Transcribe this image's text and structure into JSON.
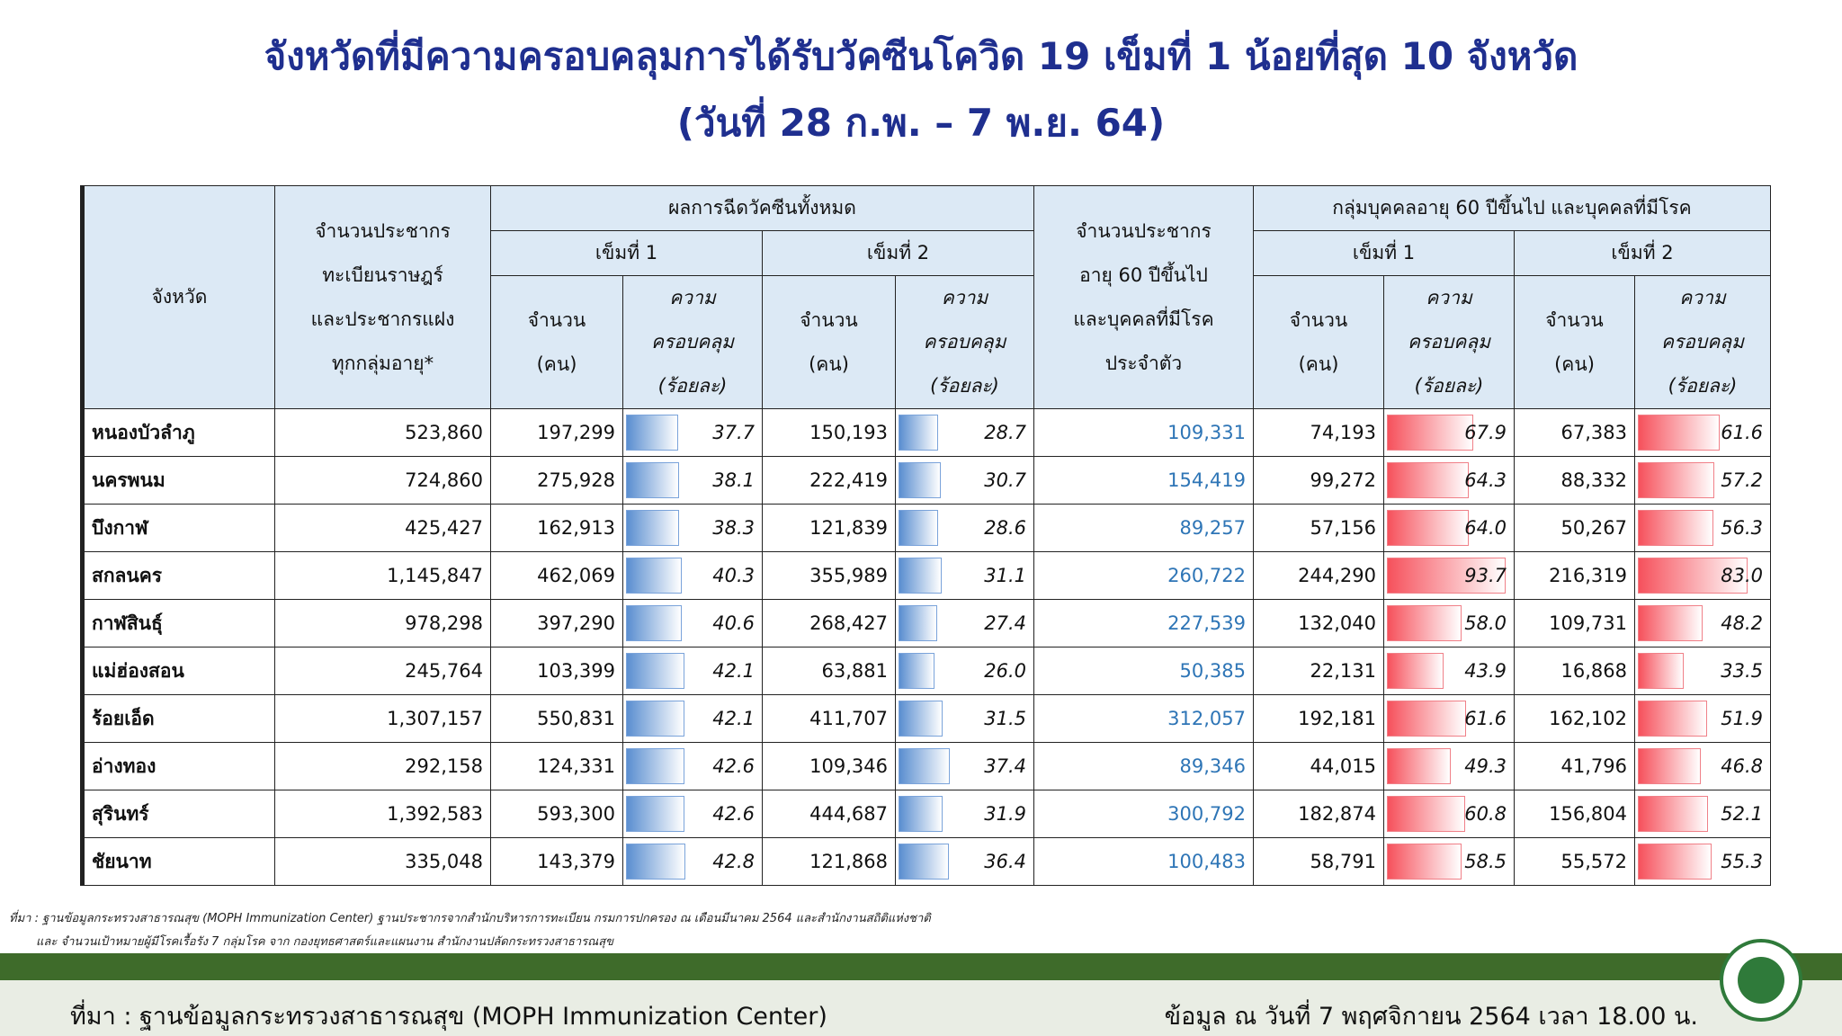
{
  "header": {
    "title": "จังหวัดที่มีความครอบคลุมการได้รับวัคซีนโควิด 19 เข็มที่ 1 น้อยที่สุด 10 จังหวัด",
    "subtitle": "(วันที่ 28 ก.พ. – 7 พ.ย. 64)"
  },
  "table": {
    "head": {
      "province": "จังหวัด",
      "population": [
        "จำนวนประชากร",
        "ทะเบียนราษฎร์",
        "และประชากรแฝง",
        "ทุกกลุ่มอายุ*"
      ],
      "all_group": "ผลการฉีดวัคซีนทั้งหมด",
      "elderly_pop": [
        "จำนวนประชากร",
        "อายุ 60 ปีขึ้นไป",
        "และบุคคลที่มีโรค",
        "ประจำตัว"
      ],
      "elderly_group": "กลุ่มบุคคลอายุ 60 ปีขึ้นไป และบุคคลที่มีโรค",
      "dose_labels": [
        "เข็มที่ 1",
        "เข็มที่ 2",
        "เข็มที่ 1",
        "เข็มที่ 2"
      ],
      "count": [
        "จำนวน",
        "(คน)"
      ],
      "coverage": [
        "ความ",
        "ครอบคลุม",
        "(ร้อยละ)"
      ]
    },
    "rows": [
      [
        "หนองบัวลำภู",
        "523,860",
        "197,299",
        "37.7",
        "150,193",
        "28.7",
        "109,331",
        "74,193",
        "67.9",
        "67,383",
        "61.6"
      ],
      [
        "นครพนม",
        "724,860",
        "275,928",
        "38.1",
        "222,419",
        "30.7",
        "154,419",
        "99,272",
        "64.3",
        "88,332",
        "57.2"
      ],
      [
        "บึงกาฬ",
        "425,427",
        "162,913",
        "38.3",
        "121,839",
        "28.6",
        "89,257",
        "57,156",
        "64.0",
        "50,267",
        "56.3"
      ],
      [
        "สกลนคร",
        "1,145,847",
        "462,069",
        "40.3",
        "355,989",
        "31.1",
        "260,722",
        "244,290",
        "93.7",
        "216,319",
        "83.0"
      ],
      [
        "กาฬสินธุ์",
        "978,298",
        "397,290",
        "40.6",
        "268,427",
        "27.4",
        "227,539",
        "132,040",
        "58.0",
        "109,731",
        "48.2"
      ],
      [
        "แม่ฮ่องสอน",
        "245,764",
        "103,399",
        "42.1",
        "63,881",
        "26.0",
        "50,385",
        "22,131",
        "43.9",
        "16,868",
        "33.5"
      ],
      [
        "ร้อยเอ็ด",
        "1,307,157",
        "550,831",
        "42.1",
        "411,707",
        "31.5",
        "312,057",
        "192,181",
        "61.6",
        "162,102",
        "51.9"
      ],
      [
        "อ่างทอง",
        "292,158",
        "124,331",
        "42.6",
        "109,346",
        "37.4",
        "89,346",
        "44,015",
        "49.3",
        "41,796",
        "46.8"
      ],
      [
        "สุรินทร์",
        "1,392,583",
        "593,300",
        "42.6",
        "444,687",
        "31.9",
        "300,792",
        "182,874",
        "60.8",
        "156,804",
        "52.1"
      ],
      [
        "ชัยนาท",
        "335,048",
        "143,379",
        "42.8",
        "121,868",
        "36.4",
        "100,483",
        "58,791",
        "58.5",
        "55,572",
        "55.3"
      ]
    ]
  },
  "footnote": [
    "ที่มา : ฐานข้อมูลกระทรวงสาธารณสุข (MOPH  Immunization Center) ฐานประชากรจากสำนักบริหารการทะเบียน กรมการปกครอง ณ เดือนมีนาคม 2564 และสำนักงานสถิติแห่งชาติ",
    "และ จำนวนเป้าหมายผู้มีโรคเรื้อรัง 7 กลุ่มโรค จาก กองยุทธศาสตร์และแผนงาน สำนักงานปลัดกระทรวงสาธารณสุข"
  ],
  "footer": {
    "source": "ที่มา : ฐานข้อมูลกระทรวงสาธารณสุข (MOPH  Immunization Center)",
    "date": "ข้อมูล ณ วันที่ 7 พฤศจิกายน 2564 เวลา 18.00 น."
  }
}
